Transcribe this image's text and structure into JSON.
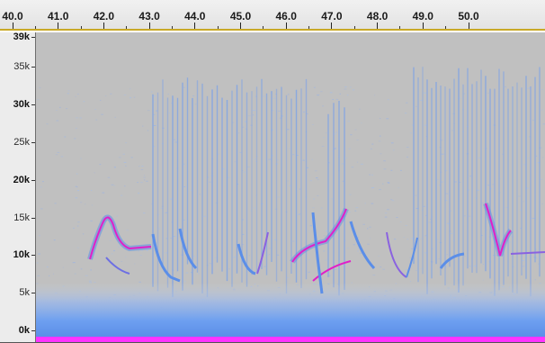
{
  "timeline": {
    "labels": [
      "40.0",
      "41.0",
      "42.0",
      "43.0",
      "44.0",
      "45.0",
      "46.0",
      "47.0",
      "48.0",
      "49.0",
      "50.0"
    ]
  },
  "frequency_axis": {
    "labels": [
      {
        "text": "39k",
        "value": 39000,
        "bold": true
      },
      {
        "text": "35k",
        "value": 35000,
        "bold": false
      },
      {
        "text": "30k",
        "value": 30000,
        "bold": true
      },
      {
        "text": "25k",
        "value": 25000,
        "bold": false
      },
      {
        "text": "20k",
        "value": 20000,
        "bold": true
      },
      {
        "text": "15k",
        "value": 15000,
        "bold": false
      },
      {
        "text": "10k",
        "value": 10000,
        "bold": true
      },
      {
        "text": "5k",
        "value": 5000,
        "bold": false
      },
      {
        "text": "0k",
        "value": 0,
        "bold": true
      }
    ]
  },
  "spectrogram": {
    "background_color": "#c0c0c0",
    "energy_color": "#5b8ee8",
    "peak_color": "#e020c8",
    "low_band_color": "#ff33ff"
  }
}
